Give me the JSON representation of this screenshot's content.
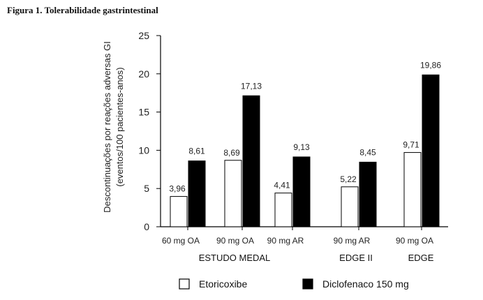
{
  "figure_title": "Figura 1. Tolerabilidade gastrintestinal",
  "chart_data": {
    "type": "bar",
    "title": "Figura 1. Tolerabilidade gastrintestinal",
    "ylabel_line1": "Descontinuações por reações adversas GI",
    "ylabel_line2": "(eventos/100 pacientes-anos)",
    "ylim": [
      0,
      25
    ],
    "yticks": [
      0,
      5,
      10,
      15,
      20,
      25
    ],
    "categories": [
      "60 mg OA",
      "90 mg OA",
      "90 mg AR",
      "90 mg AR",
      "90 mg OA"
    ],
    "groups": [
      {
        "label": "ESTUDO MEDAL",
        "categories": [
          0,
          1,
          2
        ]
      },
      {
        "label": "EDGE II",
        "categories": [
          3
        ]
      },
      {
        "label": "EDGE",
        "categories": [
          4
        ]
      }
    ],
    "series": [
      {
        "name": "Etoricoxibe",
        "color": "#ffffff",
        "values": [
          3.96,
          8.69,
          4.41,
          5.22,
          9.71
        ],
        "labels": [
          "3,96",
          "8,69",
          "4,41",
          "5,22",
          "9,71"
        ]
      },
      {
        "name": "Diclofenaco 150 mg",
        "color": "#000000",
        "values": [
          8.61,
          17.13,
          9.13,
          8.45,
          19.86
        ],
        "labels": [
          "8,61",
          "17,13",
          "9,13",
          "8,45",
          "19,86"
        ]
      }
    ],
    "legend_position": "bottom",
    "grid": false
  }
}
